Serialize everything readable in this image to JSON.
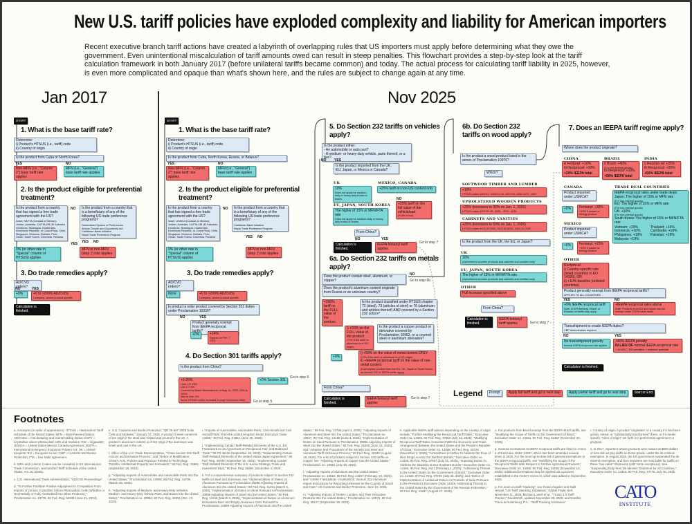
{
  "title": "New U.S. tariff policies have exploded complexity and liability for American importers",
  "intro": "Recent executive branch tariff actions have created a labyrinth of overlapping rules that US importers must apply before determining what they owe the government. Even unintentional miscalculation of tariff amounts owed can result in steep penalties. This flowchart provides a step-by-step look at the tariff calculation framework in both January 2017 (before unilateral tariffs became common) and today. The actual process for calculating tariff liability in 2025, however, is even more complicated and opaque than what's shown here, and the rules are subject to change again at any time.",
  "labels": {
    "yes": "YES",
    "no": "NO",
    "start": "START",
    "finished": "Calculation is finished.",
    "go5": "Go to step 5",
    "go6b": "Go to step 6b",
    "go7": "Go to step 7"
  },
  "jan2017": {
    "heading": "Jan 2017",
    "step1": "1. What is the base tariff rate?",
    "determine": "Determine:",
    "determine_i": "i) Product's HTSUS (i.e., tariff) code",
    "determine_ii": "ii) Country of origin",
    "cuba_q": "Is the product from Cuba or North Korea?",
    "nonmfn": "Non-MFN (i.e., \"Column 2\") base tariff rate applies",
    "mfn": "MFN (i.e., \"General\") base tariff rate applies",
    "step2": "2. Is the product eligible for preferential treatment?",
    "fta_q": "Is the product from a country that has signed a free trade agreement with the US?",
    "fta_list": "Israel, NAFTA (Canada or Mexico), Jordan, Australia, CAFTA-DR (El Salvador, Honduras, Nicaragua, Guatemala, Dominican Republic, or Costa Rica), Chile, Singapore, Morocco, Bahrain, Peru, Oman, South Korea, Colombia, Panama",
    "gsp_q": "Is the product from a country that is a beneficiary of any of the following US trade preference programs?",
    "gsp_list": [
      "Generalized System of Preferences",
      "African Growth and Opportunity Act",
      "Caribbean Basin Initiative",
      "Nepal Trade Preference Program"
    ],
    "zero": "0% (or other rate in \"Special\" column of HTSUS) applies",
    "mfn_or": "MFN or non-MFN (step 1) rate applies",
    "step3": "3. Do trade remedies apply?",
    "adcvd_q": "AD/CVD orders?",
    "plus0": "+0%",
    "adcvd": "+0 to >200% AD/CVDs",
    "adcvd_sub": "Company- and/or product-specific"
  },
  "nov2025": {
    "heading": "Nov 2025",
    "step1": "1. What is the base tariff rate?",
    "cuba_q": "Is the product from Cuba, North Korea, Russia, or Belarus?",
    "gsp_list": [
      "Caribbean Basin Initiative",
      "Nepal Trade Preference Program"
    ],
    "fta_list": "Israel, USMCA (Canada or Mexico), Jordan, Australia, CAFTA-DR (El Salvador, Honduras, Nicaragua, Guatemala, Dominican Republic, or Costa Rica), Chile, Singapore, Morocco, Bahrain, Peru, Oman, South Korea, Colombia, Panama",
    "none": "None",
    "solar_q": "Is product a solar product covered by Section 201 duties under Proclamation 10339?",
    "exempt_q": "Product generally exempt from IEEPA reciprocal tariffs?",
    "plus14": "+14%",
    "plus14_sub": "Expires on Feb. 7, 2026",
    "step4": "4. Do Section 301 tariffs apply?",
    "china_q": "Is the product from China?",
    "s301": "+0-25%",
    "s301_lines": [
      "Lists 1-3: 25%",
      "List 4: 7.5%",
      "Covered by Biden Memorandum of May 14, 2024: 25% to 100%",
      "Not on lists: 0%",
      "Some HTSUS codes excluded through November 2026"
    ],
    "s301_none": "+0% Section 301",
    "step5": "5. Do Section 232 tariffs on vehicles apply?",
    "veh_q": [
      "Is the product either:",
      "- An automobile or auto part?",
      "- A medium- or heavy-duty vehicle, parts thereof, or a bus?"
    ],
    "imp_q": "Is the product imported from the UK, EU, Japan, or Mexico or Canada?",
    "uk": "UK",
    "uk_rate": "10%",
    "uk_sub": "Does not apply for medium-duty or heavy-duty trucks or buses",
    "mxca": "MEXICO, CANADA",
    "mxca_rate": "+25% tariff on non-US content only",
    "veh_no": "NO",
    "veh_full": "+25% tariff on the full value of the vehicle/part",
    "veh_full_sub": "(+10% if bus)",
    "eujk": "EU, JAPAN, SOUTH KOREA",
    "eujk_rate": "The higher of 15% or MFN/FTA rate",
    "eujk_sub": "Does not apply for medium-duty or heavy-duty trucks or buses",
    "from_china": "From China?",
    "fentanyl": "IEEPA fentanyl tariff applies",
    "step6a": "6a. Do Section 232 tariffs on metals apply?",
    "metal_q": "Does the product contain steel, aluminum, or copper?",
    "alu_q": "Does the product's aluminum content originate from Russia or an unknown country?",
    "alu200": "+200% tariff on the FULL value of the product.",
    "ch72_q": "Is the product classified under HTSUS chapter 72 (steel), 73 (articles of steel) or 76 (aluminum and articles thereof) AND covered by a Section 232 action?",
    "full50": "i) +50% on the FULL value of the product",
    "full50_sub": "(+0% if the steel or aluminum is of US origin)",
    "copper_q": "Is the product a copper product or derivative covered by Proclamation 10962, or a covered steel or aluminum derivative?",
    "plus0": "+0%",
    "metal50": "i) +50% on the value of metal content ONLY",
    "metal50_sub": "(+0% if the steel or aluminum is of US origin)",
    "metal_ii": "ii) +IEEPA reciprocal tariff on the value of non-metal content",
    "metal_note": "(If aerospace product from the EU, UK, Japan or South Korea, no Section 232 or IEEPA tariffs apply)",
    "step6b": "6b. Do Section 232 tariffs on wood apply?",
    "wood_q": "Is the product a wood product listed in the annex of Proclamation 10976?",
    "which": "Which?",
    "softwood": "SOFTWOOD TIMBER AND LUMBER",
    "softwood_rate": "+10%",
    "softwood_sub": "HTSUS codes 4403.11, 4403.21-26, 4403.99, 4406.11/91, 4407",
    "uph": "UPHOLSTERED WOODEN PRODUCTS",
    "uph_rate": "+25% (increases to 30% on Jan. 1, 2026)",
    "uph_sub": "HTSUS codes 9401.61.40, .4031, .4011, .4031",
    "cab": "CABINETS AND VANITIES",
    "cab_rate": "+25% (increases to 50% on Jan. 1, 2026)",
    "cab_sub": "HTSUS codes 9403.40.9060, 9403.60.8093, 9403.91.0080",
    "ukeuj_q": "Is the product from the UK, the EU, or Japan?",
    "w_uk": "UK",
    "w_uk_rate": "10%",
    "w_uk_sub": "(Upholstered wooden products and cabinets and vanities only)",
    "w_eujk": "EU, JAPAN, SOUTH KOREA",
    "w_eujk_rate": "The higher of 15% or MFN/FTA rate",
    "w_eujk_sub": "(Upholstered wooden products and cabinets and vanities only)",
    "w_other": "OTHER",
    "w_other_rate": "Full increase specified above",
    "step7": "7. Does an IEEPA tariff regime apply?",
    "origin_q": "Where does the product originate?",
    "china": "CHINA",
    "china_lines": [
      "i) Fentanyl: +10%",
      "ii) Reciprocal: +10%"
    ],
    "china_total": "+20% IEEPA total",
    "brazil": "BRAZIL",
    "brazil_lines": [
      "i) Brazil: +40%",
      "(For non-exempt goods)",
      "ii) Reciprocal: +10%"
    ],
    "brazil_total": "+50% IEEPA total",
    "india": "INDIA",
    "india_lines": [
      "i) Russian oil: +25%",
      "ii) Reciprocal: +25%"
    ],
    "india_total": "+50% IEEPA total",
    "canada": "CANADA",
    "usmca_q": "Product imported under USMCA?",
    "ca_fent": "Fentanyl: +35%",
    "energy_sub": "+10% if potash or energy product",
    "mexico": "MEXICO",
    "mx_fent": "Fentanyl: +25%",
    "trade_deal": "TRADE DEAL COUNTRIES",
    "td_head": "IEEPA reciprocal rates under trade deals:",
    "td_japan": "Japan: The higher of 15% or MFN rate",
    "td_eu": "EU: The higher of 15% or MFN rate",
    "td_uk": "UK: +10%",
    "td_non": "(For non-exempt goods)",
    "td_korea": "South Korea: The higher of 15% or MFN/FTA rate",
    "td_rates": [
      "Vietnam: +20%",
      "Thailand: +19%",
      "Indonesia: +19%",
      "Cambodia: +19%",
      "Philippines: +19%",
      "Pakistan: +19%",
      "Malaysia: +19%"
    ],
    "other": "OTHER",
    "other_lines": [
      "Reciprocal:",
      "i) Country-specific rate (listed countries in EO 14326), OR",
      "ii) +10% baseline (unlisted countries)"
    ],
    "exempt_sub": "APPLIES TO ALL COUNTRIES",
    "ex_yes": "+0% IEEPA reciprocal tariff",
    "ex_yes_sub": "Note: IEEPA fentanyl, Brazil, or Russian oil tariffs may apply",
    "ex_no": "+IEEPA reciprocal rates above",
    "ex_no_sub": "Note: Products from EU and Japan may be exempt under IEEPA trade deals",
    "trans_q": "Transshipment to evade IEEPA duties?",
    "trans_sub": "CBP determination required",
    "no_pen": "No transshipment penalty",
    "no_pen_sub": "Normal IEEPA reciprocal rate applies",
    "pen": "+40% IEEPA penalty",
    "pen_lieu": "IN LIEU OF",
    "pen_rest": "normal IEEPA reciprocal rate",
    "pen_sub": "+ 19 USC 1592 penalties + forfeiture potential"
  },
  "legend": {
    "title": "Legend",
    "prompt": "Prompt",
    "full": "Apply full tariff and go to next step",
    "partial": "Apply partial tariff and go to next step",
    "startend": "Start or End"
  },
  "footnotes": {
    "title": "Footnotes",
    "a": "a. Acronyms (in order of appearance): HTSUS = Harmonized Tariff Schedule of the United States; MFN = Most-Favored Nation; AD/CVDs = Anti-dumping and countervailing duties; CSPV = Crystalline silicon photovoltaic cells and modules; GW = Gigawatts; USMCA = United States-Mexico-Canada Agreement; IEEPA = International Emergency Economic Powers Act; UK = United Kingdom; EU = European Union; CBP = Customs and Border Protection. FTA = free trade agreement.",
    "b": "b. MFN and Column 2 rates can be consulted in US International Trade Commission, Harmonized Tariff Schedule of the United States, rev. 31 (2025).",
    "c": "c. U.S. International Trade Administration, \"AD/CVD Proceedings\".",
    "d": "d. \"To Further Facilitate Positive Adjustment to Competition From Imports of Certain Crystalline Silicon Photovoltaic Cells (Whether or Not Partially or Fully Assembled Into Other Products),\" Proclamation no. 10779, 89 Fed. Reg. 53333 (June 21, 2024).",
    "e": "e. U.S. Customs and Border Protection, \"QB 25-507 2025 Solar Cells and Modules,\" January 27, 2025. A product's steel content is of US origin if the steel was melted and poured in the US. A product's aluminum content is of US origin if the aluminum was smelt and cast in the US.",
    "f": "f. Office of the U.S. Trade Representative, \"China Section 301-Tariff Actions and Exclusion Process\"; and \"Notice of Modification: China's Acts, Policies and Practices Related to Technology Transfer, Intellectual Property and Innovation,\" 89 Fed. Reg. 76581 (September 18, 2024).",
    "g": "g. \"Adjusting Imports of Automobiles and Automobile Parts Into the United States,\" Proclamation no. 10908, 90 Fed. Reg. 14705 (March 26, 2025).",
    "h": "h. \"Adjusting Imports of Medium- and Heavy-Duty Vehicles, Medium- and Heavy-Duty Vehicle Parts, and Buses Into the United States,\" Proclamation no. 10984, 90 Fed. Reg. 48451 (Oct. 17, 2025).",
    "i": "i. \"Imports of Automobiles, Automobile Parts, Civil Aircraft and Civil Aircraft Parts From the United Kingdom Under Executive Order 14309,\" 90 Fed. Reg. 27851 (June 30, 2025).",
    "j": "j. \"Implementing Certain Tariff-Related Elements of the U.S.-EU Framework on an Agreement on Reciprocal, Fair, and Balanced Trade,\" 90 FR 46136 (September 25, 2025); \"Implementing Certain Tariff-Related Elements of the United States-Japan Agreement,\" 90 Fed. Reg. 44639 (September 16, 2025); \"Implementing Certain Tariff-Related Elements of the U.S.-Korea Strategic Trade and Investment Deal,\" 90 Fed. Reg. 55964, December 4, 2025.",
    "k": "k. For a comprehensive summary of products subject to Section 232 tariffs on steel and aluminum, see \"Implementation of Duties on Aluminum Pursuant to Proclamation 10895 Adjusting Imports of Aluminum Into the United States,\" 90 Fed. Reg. 11251 (March 5, 2025); \"Implementation of Duties on Steel Pursuant to Proclamation 10896 Adjusting Imports of Steel Into the United States,\" 90 Fed. Reg. 11249 (March 5, 2025); \"Implementation of Duties on Aluminum Derivatives Beer and Empty Aluminum Cans Pursuant to Proclamation 10895 Adjusting Imports of Aluminum Into the United States,\" 90 Fed. Reg. 14786 (April 4, 2025); \"Adjusting Imports of Aluminum and Steel Into the United States,\" Proclamation no. 10947, 90 Fed. Reg. 24199 (June 3, 2025); \"Implementation of Duties on Steel Pursuant to Proclamation 10896 Adjusting Imports of Steel Into the United States,\" 90 Fed. Reg. 25208 (June 16, 2025); and \"Adoption and Procedures of the Section 232 Steel and Aluminum Tariff Inclusions Process,\" 90 Fed. Reg. 40326 (August 19, 2025). For a list of products subject to Section 232 tariffs on copper, see \"Adjusting Imports of Copper Into the United States,\" Proclamation no. 10962 (July 30, 2025).",
    "l": "l. \"Adjusting Imports of Aluminum Into the United States,\" Proclamation no. 10522, 88 Fed. Reg. 13267 (February 24, 2023); and \"CSMS # 65148246 - GUIDANCE: Section 232 Aluminum Import Instructions for Reporting Unknown for the Country of Smelt and Cast,\" US Customs and Border Protection, June 13, 2025.",
    "m": "m. \"Adjusting Imports of Timber, Lumber, and Their Derivative Products Into the United States,\" Proclamation no. 10976, 90 Fed. Reg. 48127 (September 29, 2025).",
    "n": "n. Applicable IEEPA tariff actions depending on the country of origin include: \"Further Modifying the Reciprocal Tariff Rates,\" Executive Order no. 14326, 90 Fed. Reg. 37963 (July 31, 2025); \"Modifying Reciprocal Tariff Rates Consistent With the Economic and Trade Arrangement Between the United States and the People's Republic of China,\" Executive Order no. 14358, 90 Fed. Reg. 50729 (November 4, 2025); \"Amendment to Duties To Address the Flow of Illicit Drugs Across Our Northern Border,\" Executive Order no. 14325, 90 Fed. Reg. 37957 (July 31, 2025); \"Imposing Duties To Address the Situation at Our Southern Border,\" Executive Order no. 14194, 90 Fed. Reg. 9117 (February 1, 2025); \"Addressing Threats to the United States by the Government of Brazil,\" Executive Order no. 14323, 90 Fed. Reg. 37739 (July 30, 2025); and \"Notice of Implementation of Additional Duties on Products of India Pursuant to the President's Executive Order 14329, Addressing Threats to the United States by the Government of the Russian Federation,\" 90 Fed. Reg. 41837 (August 27, 2025).",
    "o": "o. For products from Brazil exempt from the IEEPA Brazil tariffs, see \"Modifying the Scope of Tariffs on the Government of Brazil,\" Executive Order no. 14361, 90 Fed. Reg. 54467 (November 20, 2025).",
    "p": "p. General exemptions to IEEPA reciprocal tariffs are listed in Annex II of Executive Order 14257, which has been amended several times in 2025. For the most up-to-date list of general exemptions to the IEEPA reciprocal tariffs, see \"Modifying the Scope of the Reciprocal Tariffs With Respect to Certain Agricultural Products,\" Executive Order no. 14360, 90 Fed. Reg. 54091 (November 14, 2025). Additional exemptions may be applied via a process established in the Order's Annex III, which was added in September 2025.",
    "q": "q. For more on tariff \"stacking\", see Fiama Angeles and Nalit Harpal, \"US Tariff Stacking, Explained,\" Global Trade Alert, November 11, 2025; Michael Lowell et al., \"Trump 2.0 Tariff Tracker,\" ReedSmith, updated November 20, 2025; and Sandler, Travis & Rosenberg, P.A., \"Tariff Tracking Scenarios\".",
    "r": "r. Country of origin: A product \"originates\" in a country if it has been grown, mined, or \"substantially transformed\" there, or if it meets specific \"rules of origin\" set forth in a preferential agreement or program.",
    "s": "s. In 2017, importers whose products were valued at $800 dollars or less did not pay tariffs on those goods, under the de minimis exemption. In August 2025, the US government suspended the de minimis exemption, and thus importers are now liable for tariffs on these \"low-value\" shipments (with some exceptions). See, \"Suspending Duty-Free De Minimis Treatment for All Countries,\" Executive Order no. 14324, 90 Fed. Reg. 37775, July 30, 2025."
  },
  "logo": {
    "name": "CATO",
    "sub": "INSTITUTE"
  },
  "colors": {
    "prompt": "#dde9f4",
    "full": "#f26c6c",
    "partial": "#7dd7d7",
    "end": "#111111"
  }
}
